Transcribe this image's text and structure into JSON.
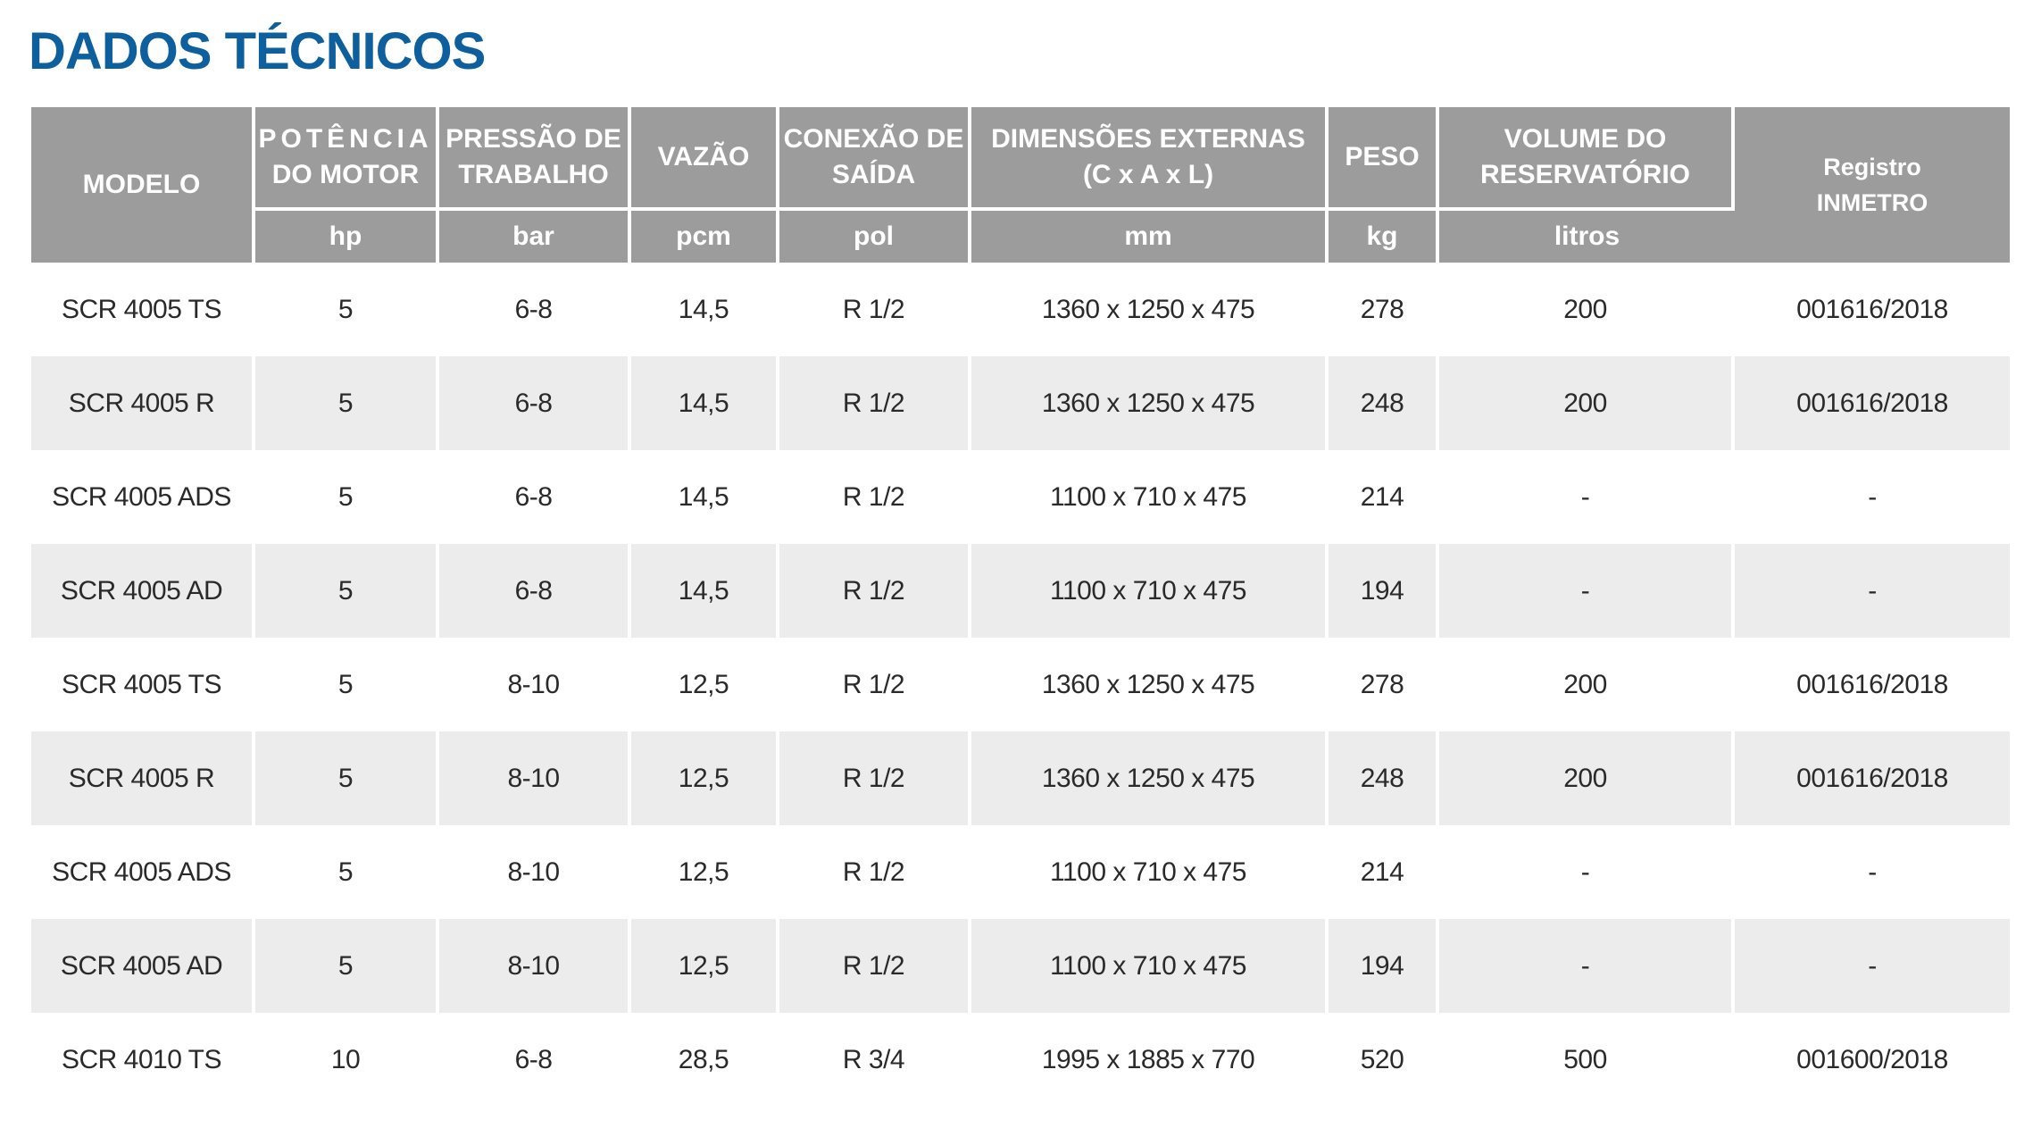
{
  "title": "DADOS TÉCNICOS",
  "table": {
    "headers": [
      {
        "label": "MODELO",
        "unit": null
      },
      {
        "label": "POTÊNCIA\nDO MOTOR",
        "unit": "hp"
      },
      {
        "label": "PRESSÃO DE\nTRABALHO",
        "unit": "bar"
      },
      {
        "label": "VAZÃO",
        "unit": "pcm"
      },
      {
        "label": "CONEXÃO DE\nSAÍDA",
        "unit": "pol"
      },
      {
        "label": "DIMENSÕES EXTERNAS\n(C x A x L)",
        "unit": "mm"
      },
      {
        "label": "PESO",
        "unit": "kg"
      },
      {
        "label": "VOLUME DO\nRESERVATÓRIO",
        "unit": "litros"
      },
      {
        "label": "Registro\nINMETRO",
        "unit": null
      }
    ],
    "rows": [
      [
        "SCR 4005 TS",
        "5",
        "6-8",
        "14,5",
        "R 1/2",
        "1360 x 1250 x 475",
        "278",
        "200",
        "001616/2018"
      ],
      [
        "SCR 4005 R",
        "5",
        "6-8",
        "14,5",
        "R 1/2",
        "1360 x 1250 x 475",
        "248",
        "200",
        "001616/2018"
      ],
      [
        "SCR 4005 ADS",
        "5",
        "6-8",
        "14,5",
        "R 1/2",
        "1100 x 710 x 475",
        "214",
        "-",
        "-"
      ],
      [
        "SCR 4005 AD",
        "5",
        "6-8",
        "14,5",
        "R 1/2",
        "1100 x 710 x 475",
        "194",
        "-",
        "-"
      ],
      [
        "SCR 4005 TS",
        "5",
        "8-10",
        "12,5",
        "R 1/2",
        "1360 x 1250 x 475",
        "278",
        "200",
        "001616/2018"
      ],
      [
        "SCR 4005 R",
        "5",
        "8-10",
        "12,5",
        "R 1/2",
        "1360 x 1250 x 475",
        "248",
        "200",
        "001616/2018"
      ],
      [
        "SCR 4005 ADS",
        "5",
        "8-10",
        "12,5",
        "R 1/2",
        "1100 x 710 x 475",
        "214",
        "-",
        "-"
      ],
      [
        "SCR 4005 AD",
        "5",
        "8-10",
        "12,5",
        "R 1/2",
        "1100 x 710 x 475",
        "194",
        "-",
        "-"
      ],
      [
        "SCR 4010 TS",
        "10",
        "6-8",
        "28,5",
        "R 3/4",
        "1995 x 1885 x 770",
        "520",
        "500",
        "001600/2018"
      ]
    ]
  },
  "colors": {
    "title": "#0d5f9e",
    "header_bg": "#9c9c9c",
    "header_text": "#ffffff",
    "row_alt_bg": "#ececec",
    "cell_text": "#2a2a2a"
  }
}
